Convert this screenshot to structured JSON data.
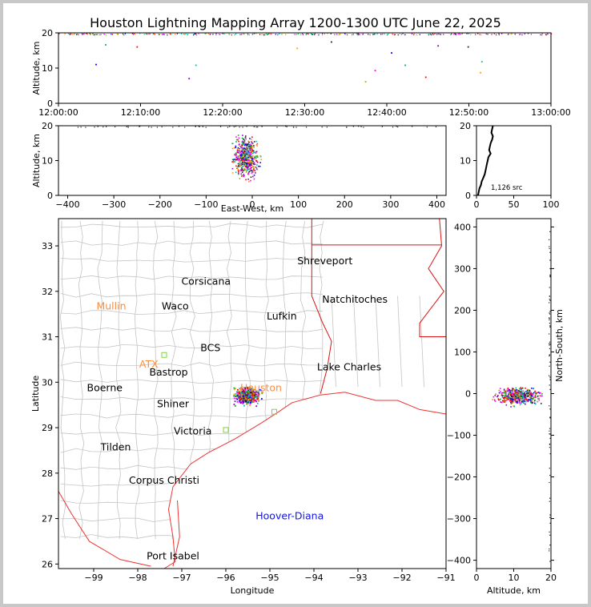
{
  "title": "Houston Lightning Mapping Array 1200-1300 UTC June 22, 2025",
  "colors": {
    "background_border": "#c8c8c8",
    "state_border": "#dd1111",
    "coastline": "#ee3333",
    "county_lines": "#c4c4c4",
    "station_label_orange": "#ff8c3c",
    "station_label_blue": "#1515dd",
    "source_palette": [
      "#0000ff",
      "#00b050",
      "#ff0000",
      "#8800cc",
      "#00c0c0",
      "#ff9900",
      "#222222",
      "#aaaa00",
      "#ff00ff"
    ]
  },
  "chart_data": [
    {
      "type": "scatter",
      "panel": "altitude-vs-time",
      "ylabel": "Altitude, km",
      "xlim": [
        "12:00:00",
        "13:00:00"
      ],
      "ylim": [
        0,
        20
      ],
      "x_ticks": [
        "12:00:00",
        "12:10:00",
        "12:20:00",
        "12:30:00",
        "12:40:00",
        "12:50:00",
        "13:00:00"
      ],
      "y_ticks": [
        0,
        10,
        20
      ],
      "points": [
        [
          "12:04:30",
          11.2
        ],
        [
          "12:05:40",
          16.8
        ],
        [
          "12:09:30",
          16.2
        ],
        [
          "12:15:50",
          7.2
        ],
        [
          "12:16:40",
          11.0
        ],
        [
          "12:29:00",
          15.8
        ],
        [
          "12:33:10",
          17.6
        ],
        [
          "12:37:20",
          6.3
        ],
        [
          "12:38:30",
          9.5
        ],
        [
          "12:40:30",
          14.5
        ],
        [
          "12:42:10",
          11.0
        ],
        [
          "12:44:40",
          7.6
        ],
        [
          "12:46:10",
          16.5
        ],
        [
          "12:51:30",
          12.0
        ],
        [
          "12:51:20",
          8.9
        ],
        [
          "12:49:50",
          16.2
        ]
      ]
    },
    {
      "type": "scatter",
      "panel": "altitude-vs-east-west",
      "xlabel": "East-West, km",
      "ylabel": "Altitude, km",
      "xlim": [
        -420,
        420
      ],
      "ylim": [
        0,
        20
      ],
      "x_ticks": [
        -400,
        -300,
        -200,
        -100,
        0,
        100,
        200,
        300,
        400
      ],
      "y_ticks": [
        0,
        10,
        20
      ]
    },
    {
      "type": "line",
      "panel": "altitude-histogram",
      "annotation": "1,126 src",
      "xlim": [
        0,
        100
      ],
      "ylim": [
        0,
        20
      ],
      "x_ticks": [
        0,
        50,
        100
      ],
      "y_ticks": [
        0,
        10,
        20
      ],
      "altitude_km": [
        0,
        1,
        2,
        3,
        4,
        5,
        6,
        7,
        8,
        9,
        10,
        11,
        12,
        13,
        14,
        15,
        16,
        17,
        18,
        19,
        20
      ],
      "source_count": [
        2,
        3,
        4,
        6,
        7,
        9,
        11,
        12,
        13,
        14,
        15,
        16,
        19,
        17,
        18,
        19,
        21,
        22,
        20,
        21,
        22
      ]
    },
    {
      "type": "scatter",
      "panel": "plan-view-map",
      "xlabel": "Longitude",
      "ylabel": "Latitude",
      "xlim": [
        -99.8,
        -91
      ],
      "ylim": [
        25.9,
        33.6
      ],
      "x_ticks": [
        -99,
        -98,
        -97,
        -96,
        -95,
        -94,
        -93,
        -92,
        -91
      ],
      "y_ticks": [
        26,
        27,
        28,
        29,
        30,
        31,
        32,
        33
      ]
    },
    {
      "type": "scatter",
      "panel": "north-south-vs-altitude",
      "xlabel": "Altitude, km",
      "ylabel": "North-South, km",
      "xlim": [
        0,
        20
      ],
      "ylim": [
        -420,
        420
      ],
      "x_ticks": [
        0,
        10,
        20
      ],
      "y_ticks": [
        -400,
        -300,
        -200,
        -100,
        0,
        100,
        200,
        300,
        400
      ]
    }
  ],
  "map_labels": [
    {
      "text": "Shreveport",
      "lon": -93.75,
      "lat": 32.6,
      "color": "#000000"
    },
    {
      "text": "Corsicana",
      "lon": -96.45,
      "lat": 32.15,
      "color": "#000000"
    },
    {
      "text": "Natchitoches",
      "lon": -93.07,
      "lat": 31.75,
      "color": "#000000"
    },
    {
      "text": "Mullin",
      "lon": -98.6,
      "lat": 31.6,
      "color": "#ff8c3c"
    },
    {
      "text": "Waco",
      "lon": -97.15,
      "lat": 31.6,
      "color": "#000000"
    },
    {
      "text": "Lufkin",
      "lon": -94.73,
      "lat": 31.38,
      "color": "#000000"
    },
    {
      "text": "BCS",
      "lon": -96.35,
      "lat": 30.68,
      "color": "#000000"
    },
    {
      "text": "ATX",
      "lon": -97.75,
      "lat": 30.32,
      "color": "#ff8c3c"
    },
    {
      "text": "Bastrop",
      "lon": -97.3,
      "lat": 30.15,
      "color": "#000000"
    },
    {
      "text": "Lake Charles",
      "lon": -93.2,
      "lat": 30.26,
      "color": "#000000"
    },
    {
      "text": "Boerne",
      "lon": -98.75,
      "lat": 29.8,
      "color": "#000000"
    },
    {
      "text": "Houston",
      "lon": -95.2,
      "lat": 29.8,
      "color": "#ff8c3c"
    },
    {
      "text": "Shiner",
      "lon": -97.2,
      "lat": 29.45,
      "color": "#000000"
    },
    {
      "text": "Victoria",
      "lon": -96.75,
      "lat": 28.85,
      "color": "#000000"
    },
    {
      "text": "Tilden",
      "lon": -98.5,
      "lat": 28.5,
      "color": "#000000"
    },
    {
      "text": "Corpus Christi",
      "lon": -97.4,
      "lat": 27.77,
      "color": "#000000"
    },
    {
      "text": "Hoover-Diana",
      "lon": -94.55,
      "lat": 26.98,
      "color": "#1515dd"
    },
    {
      "text": "Port Isabel",
      "lon": -97.2,
      "lat": 26.1,
      "color": "#000000"
    }
  ]
}
